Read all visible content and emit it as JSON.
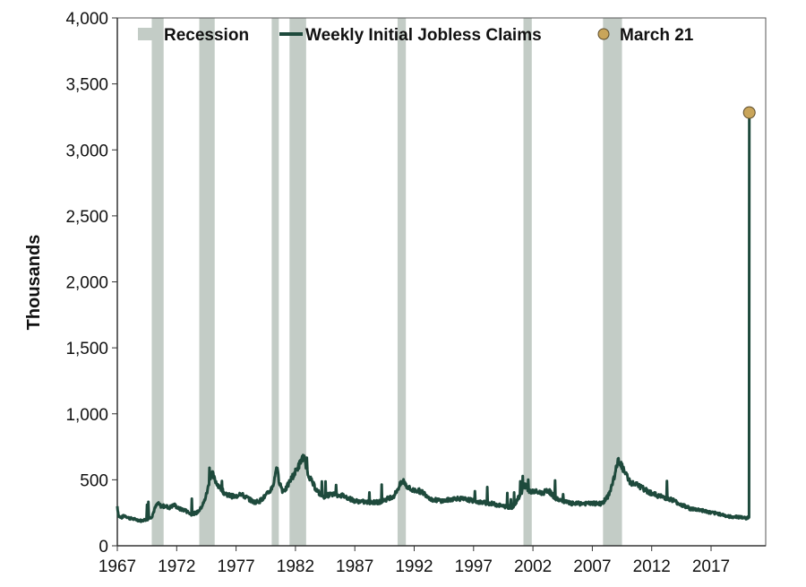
{
  "chart_data": {
    "type": "line",
    "ylabel": "Thousands",
    "ylim": [
      0,
      4000
    ],
    "yticks": [
      0,
      500,
      1000,
      1500,
      2000,
      2500,
      3000,
      3500,
      4000
    ],
    "ytick_labels": [
      "0",
      "500",
      "1,000",
      "1,500",
      "2,000",
      "2,500",
      "3,000",
      "3,500",
      "4,000"
    ],
    "xlim": [
      1967,
      2021.6
    ],
    "xticks": [
      1967,
      1972,
      1977,
      1982,
      1987,
      1992,
      1997,
      2002,
      2007,
      2012,
      2017
    ],
    "xtick_labels": [
      "1967",
      "1972",
      "1977",
      "1982",
      "1987",
      "1992",
      "1997",
      "2002",
      "2007",
      "2012",
      "2017"
    ],
    "grid": false,
    "legend_position": "top",
    "legend": {
      "recession": "Recession",
      "series": "Weekly Initial Jobless Claims",
      "marker": "March 21"
    },
    "colors": {
      "recession": "#c3ccc6",
      "series": "#1e4a3c",
      "marker": "#c9a55a",
      "axis": "#555555"
    },
    "recessions": [
      [
        1969.9,
        1970.9
      ],
      [
        1973.9,
        1975.2
      ],
      [
        1980.0,
        1980.6
      ],
      [
        1981.5,
        1982.9
      ],
      [
        1990.6,
        1991.3
      ],
      [
        2001.2,
        2001.9
      ],
      [
        2007.9,
        2009.5
      ]
    ],
    "series": [
      {
        "name": "Weekly Initial Jobless Claims",
        "x": [
          1967.0,
          1967.1,
          1967.3,
          1967.6,
          1968.0,
          1968.5,
          1969.0,
          1969.5,
          1969.9,
          1970.2,
          1970.4,
          1970.7,
          1971.0,
          1971.4,
          1971.8,
          1972.2,
          1972.7,
          1973.2,
          1973.7,
          1974.0,
          1974.3,
          1974.6,
          1974.8,
          1975.0,
          1975.2,
          1975.5,
          1976.0,
          1976.5,
          1977.0,
          1977.3,
          1977.6,
          1978.0,
          1978.5,
          1979.0,
          1979.5,
          1979.9,
          1980.2,
          1980.4,
          1980.6,
          1980.9,
          1981.2,
          1981.6,
          1982.0,
          1982.3,
          1982.6,
          1982.8,
          1983.0,
          1983.4,
          1983.8,
          1984.3,
          1985.0,
          1986.0,
          1987.0,
          1988.0,
          1989.0,
          1989.6,
          1990.3,
          1990.8,
          1991.1,
          1991.4,
          1991.8,
          1992.3,
          1992.8,
          1993.5,
          1994.5,
          1995.5,
          1996.5,
          1997.5,
          1998.5,
          1999.5,
          2000.3,
          2000.9,
          2001.3,
          2001.6,
          2001.8,
          2002.2,
          2002.8,
          2003.3,
          2003.9,
          2004.5,
          2005.2,
          2005.8,
          2006.5,
          2007.2,
          2007.8,
          2008.3,
          2008.7,
          2009.0,
          2009.2,
          2009.4,
          2009.7,
          2010.2,
          2010.8,
          2011.5,
          2012.2,
          2012.9,
          2013.7,
          2014.5,
          2015.3,
          2016.2,
          2017.0,
          2017.8,
          2018.5,
          2019.2,
          2019.9,
          2020.2
        ],
        "values": [
          300,
          230,
          210,
          230,
          210,
          200,
          190,
          200,
          220,
          290,
          320,
          300,
          300,
          290,
          310,
          280,
          270,
          240,
          250,
          280,
          330,
          420,
          520,
          550,
          500,
          460,
          400,
          380,
          370,
          400,
          380,
          360,
          330,
          340,
          380,
          420,
          480,
          610,
          500,
          420,
          430,
          500,
          560,
          610,
          670,
          650,
          560,
          480,
          420,
          370,
          390,
          380,
          340,
          330,
          330,
          350,
          380,
          460,
          490,
          450,
          420,
          420,
          400,
          350,
          340,
          360,
          350,
          330,
          320,
          300,
          290,
          380,
          460,
          420,
          410,
          410,
          400,
          420,
          360,
          340,
          320,
          320,
          320,
          320,
          320,
          370,
          470,
          580,
          650,
          620,
          560,
          480,
          460,
          420,
          390,
          370,
          350,
          310,
          280,
          270,
          250,
          240,
          220,
          220,
          210,
          215
        ]
      }
    ],
    "spike": {
      "x": 2020.22,
      "value": 3283
    },
    "march21": {
      "label": "March 21",
      "x": 2020.22,
      "value": 3283
    }
  }
}
